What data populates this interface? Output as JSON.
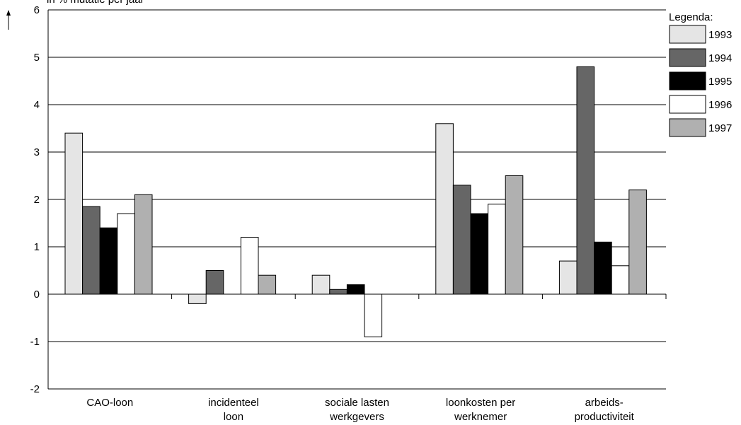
{
  "chart_data": {
    "type": "bar",
    "ylabel": "in % mutatie per jaar",
    "ylim": [
      -2,
      6
    ],
    "yticks": [
      6,
      5,
      4,
      3,
      2,
      1,
      0,
      -1,
      -2
    ],
    "grid": true,
    "legend_title": "Legenda:",
    "legend_position": "right",
    "categories": [
      [
        "CAO-loon"
      ],
      [
        "incidenteel",
        "loon"
      ],
      [
        "sociale lasten",
        "werkgevers"
      ],
      [
        "loonkosten per",
        "werknemer"
      ],
      [
        "arbeids-",
        "productiviteit"
      ]
    ],
    "series": [
      {
        "name": "1993",
        "color": "#e5e5e5",
        "values": [
          3.4,
          -0.2,
          0.4,
          3.6,
          0.7
        ]
      },
      {
        "name": "1994",
        "color": "#666666",
        "values": [
          1.85,
          0.5,
          0.1,
          2.3,
          4.8
        ]
      },
      {
        "name": "1995",
        "color": "#000000",
        "values": [
          1.4,
          0.0,
          0.2,
          1.7,
          1.1
        ]
      },
      {
        "name": "1996",
        "color": "#ffffff",
        "values": [
          1.7,
          1.2,
          -0.9,
          1.9,
          0.6
        ]
      },
      {
        "name": "1997",
        "color": "#b0b0b0",
        "values": [
          2.1,
          0.4,
          0.0,
          2.5,
          2.2
        ]
      }
    ]
  }
}
